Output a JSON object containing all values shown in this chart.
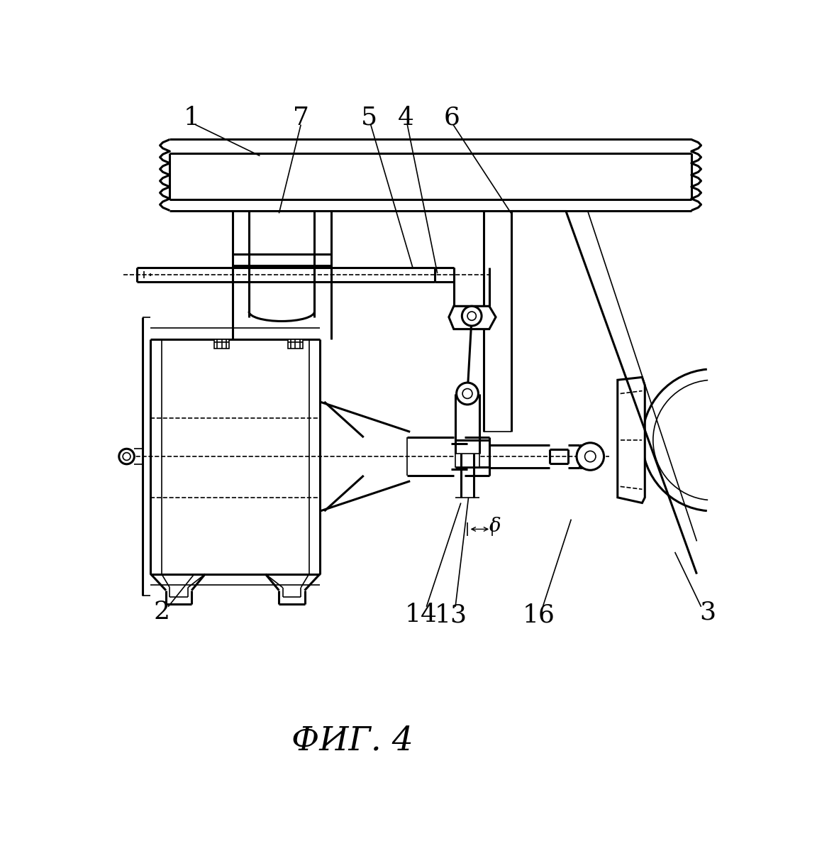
{
  "bg_color": "#ffffff",
  "line_color": "#000000",
  "figsize": [
    11.83,
    12.2
  ],
  "dpi": 100,
  "caption": "Фиг. 4"
}
